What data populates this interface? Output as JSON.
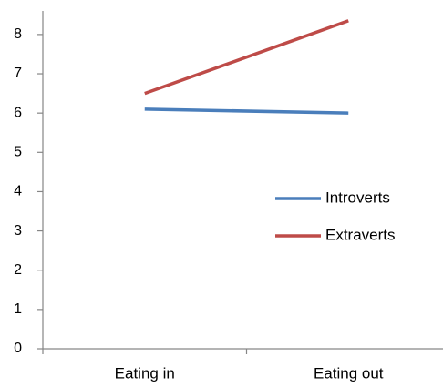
{
  "chart_data": {
    "type": "line",
    "categories": [
      "Eating in",
      "Eating out"
    ],
    "series": [
      {
        "name": "Introverts",
        "color": "#4a7ebb",
        "values": [
          6.1,
          6.0
        ]
      },
      {
        "name": "Extraverts",
        "color": "#be4b48",
        "values": [
          6.5,
          8.35
        ]
      }
    ],
    "ylim": [
      0,
      8.6
    ],
    "yticks": [
      0,
      1,
      2,
      3,
      4,
      5,
      6,
      7,
      8
    ],
    "grid": false,
    "legend": "right"
  }
}
